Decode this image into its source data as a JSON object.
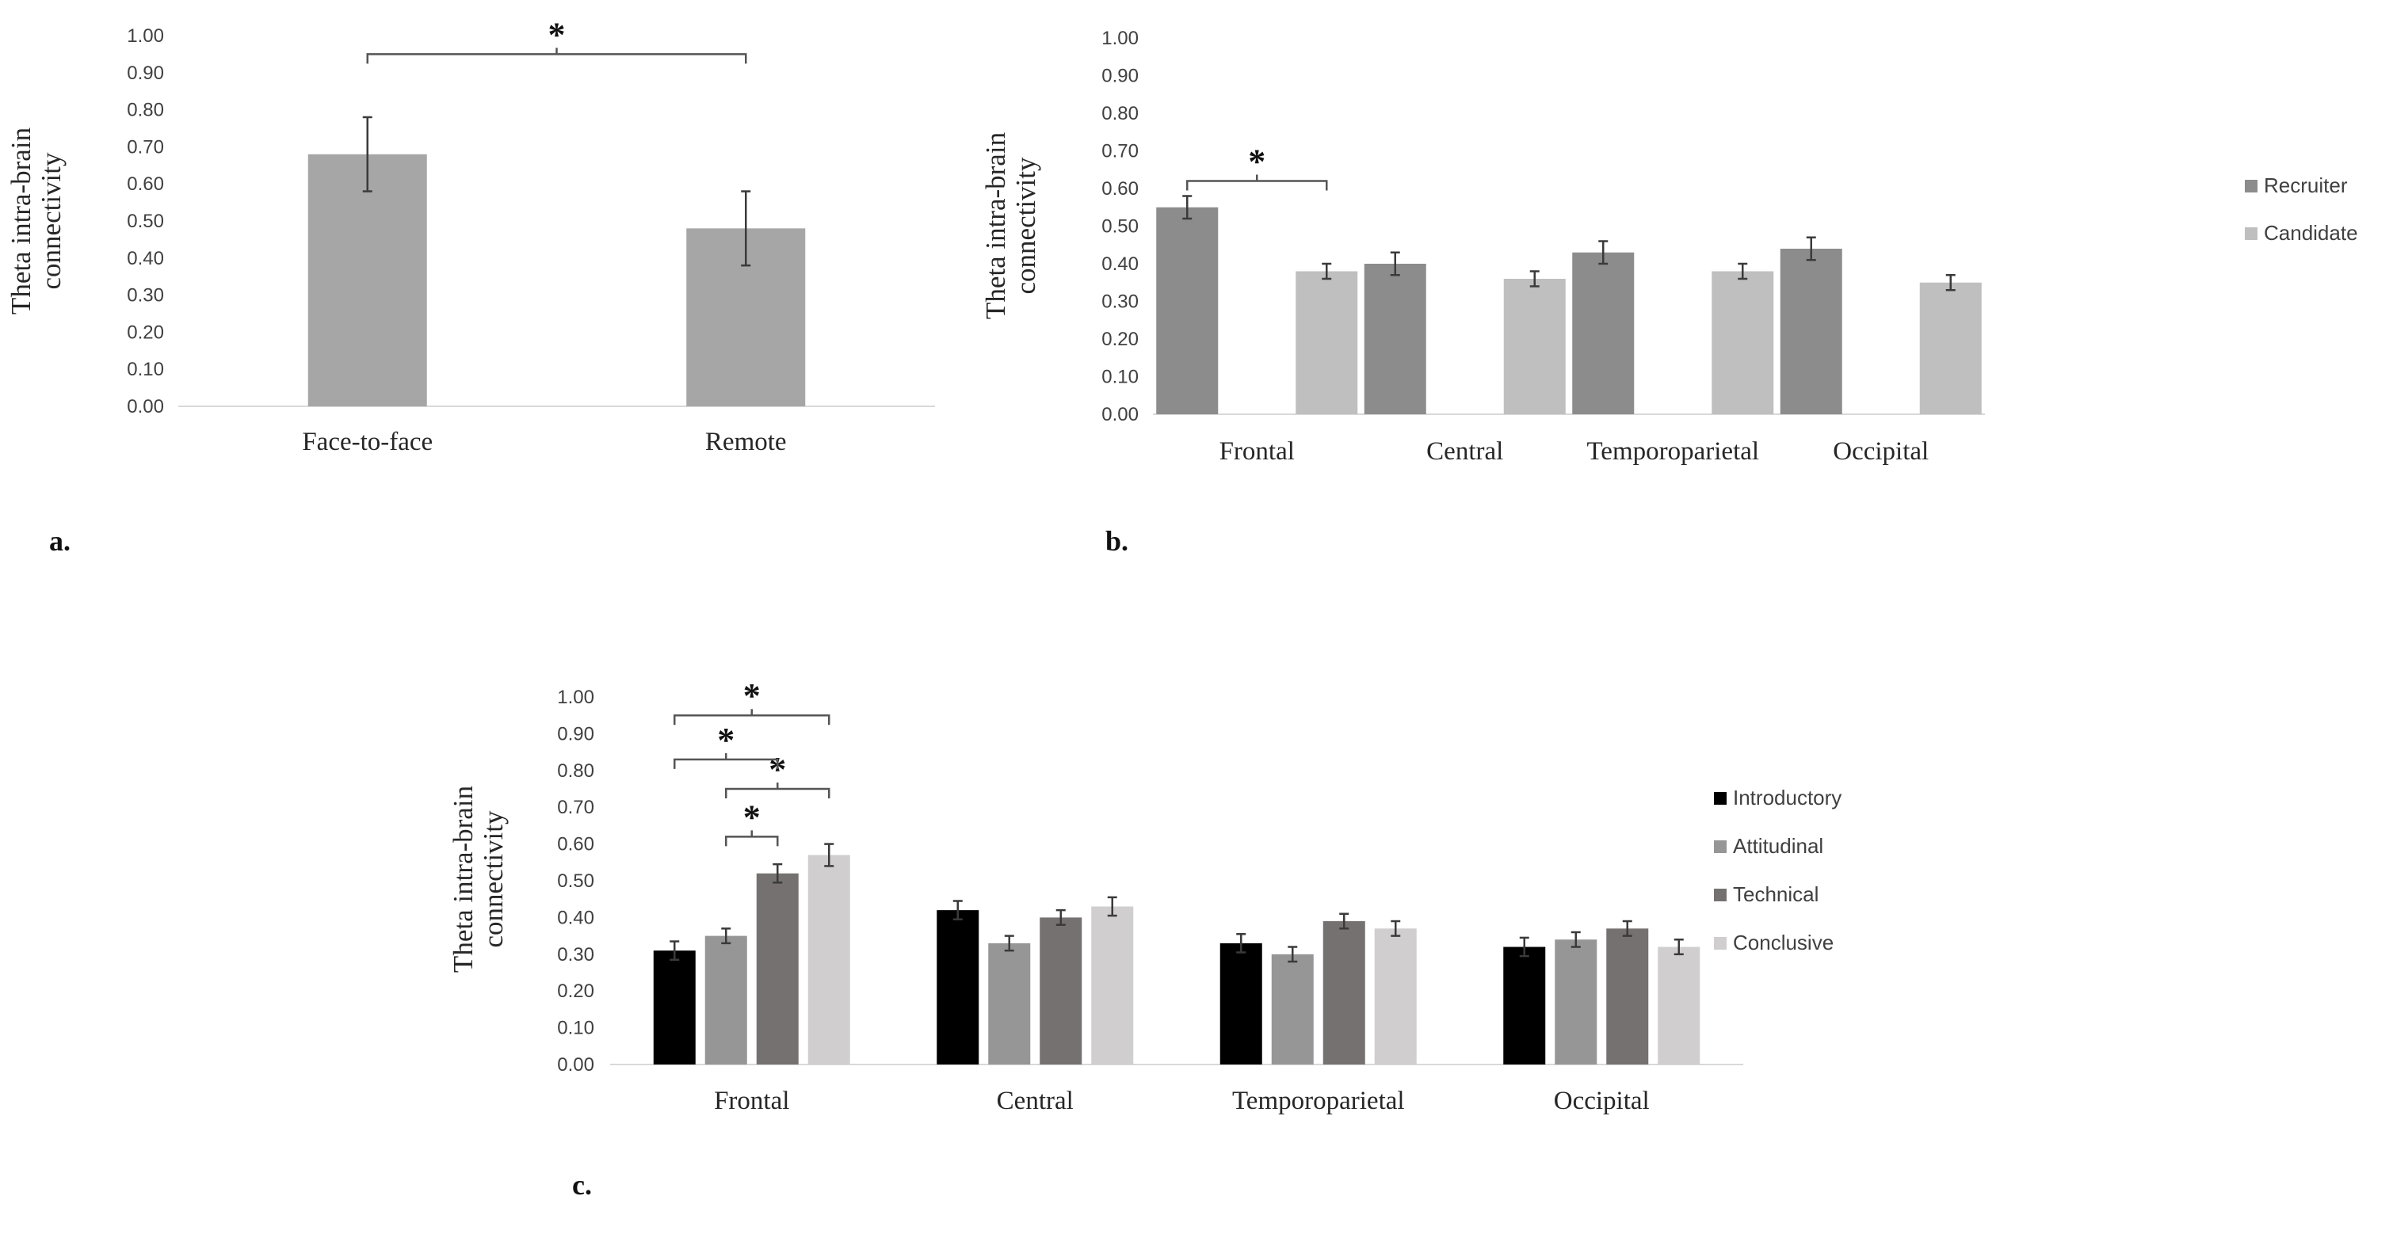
{
  "chart_data": [
    {
      "id": "a",
      "type": "bar",
      "panel_label": "a.",
      "ylabel": [
        "Theta intra-brain",
        "connectivity"
      ],
      "ylim": [
        0,
        1
      ],
      "yticks": [
        "0.00",
        "0.10",
        "0.20",
        "0.30",
        "0.40",
        "0.50",
        "0.60",
        "0.70",
        "0.80",
        "0.90",
        "1.00"
      ],
      "categories": [
        "Face-to-face",
        "Remote"
      ],
      "series": [
        {
          "name": "",
          "color": "#a6a6a6",
          "values": [
            0.68,
            0.48
          ],
          "errors": [
            0.1,
            0.1
          ]
        }
      ],
      "annotations": [
        {
          "text": "*",
          "from_category": 0,
          "to_category": 1,
          "level": 0.95
        }
      ]
    },
    {
      "id": "b",
      "type": "bar",
      "panel_label": "b.",
      "ylabel": [
        "Theta intra-brain",
        "connectivity"
      ],
      "ylim": [
        0,
        1
      ],
      "yticks": [
        "0.00",
        "0.10",
        "0.20",
        "0.30",
        "0.40",
        "0.50",
        "0.60",
        "0.70",
        "0.80",
        "0.90",
        "1.00"
      ],
      "categories": [
        "Frontal",
        "Central",
        "Temporoparietal",
        "Occipital"
      ],
      "legend_position": "right",
      "series": [
        {
          "name": "Recruiter",
          "color": "#8c8c8c",
          "values": [
            0.55,
            0.4,
            0.43,
            0.44
          ],
          "errors": [
            0.03,
            0.03,
            0.03,
            0.03
          ]
        },
        {
          "name": "Candidate",
          "color": "#bfbfbf",
          "values": [
            0.38,
            0.36,
            0.38,
            0.35
          ],
          "errors": [
            0.02,
            0.02,
            0.02,
            0.02
          ]
        }
      ],
      "annotations": [
        {
          "text": "*",
          "category": 0,
          "from_series": 0,
          "to_series": 1,
          "level": 0.62
        }
      ]
    },
    {
      "id": "c",
      "type": "bar",
      "panel_label": "c.",
      "ylabel": [
        "Theta intra-brain",
        "connectivity"
      ],
      "ylim": [
        0,
        1
      ],
      "yticks": [
        "0.00",
        "0.10",
        "0.20",
        "0.30",
        "0.40",
        "0.50",
        "0.60",
        "0.70",
        "0.80",
        "0.90",
        "1.00"
      ],
      "categories": [
        "Frontal",
        "Central",
        "Temporoparietal",
        "Occipital"
      ],
      "legend_position": "right",
      "series": [
        {
          "name": "Introductory",
          "color": "#000000",
          "values": [
            0.31,
            0.42,
            0.33,
            0.32
          ],
          "errors": [
            0.025,
            0.025,
            0.025,
            0.025
          ]
        },
        {
          "name": "Attitudinal",
          "color": "#969696",
          "values": [
            0.35,
            0.33,
            0.3,
            0.34
          ],
          "errors": [
            0.02,
            0.02,
            0.02,
            0.02
          ]
        },
        {
          "name": "Technical",
          "color": "#767171",
          "values": [
            0.52,
            0.4,
            0.39,
            0.37
          ],
          "errors": [
            0.025,
            0.02,
            0.02,
            0.02
          ]
        },
        {
          "name": "Conclusive",
          "color": "#d0cece",
          "values": [
            0.57,
            0.43,
            0.37,
            0.32
          ],
          "errors": [
            0.03,
            0.025,
            0.02,
            0.02
          ]
        }
      ],
      "annotations": [
        {
          "text": "*",
          "category": 0,
          "from_series": 2,
          "to_series": 1,
          "level": 0.62
        },
        {
          "text": "*",
          "category": 0,
          "from_series": 1,
          "to_series": 3,
          "level": 0.75
        },
        {
          "text": "*",
          "category": 0,
          "from_series": 0,
          "to_series": 2,
          "level": 0.83
        },
        {
          "text": "*",
          "category": 0,
          "from_series": 0,
          "to_series": 3,
          "level": 0.95
        }
      ]
    }
  ]
}
